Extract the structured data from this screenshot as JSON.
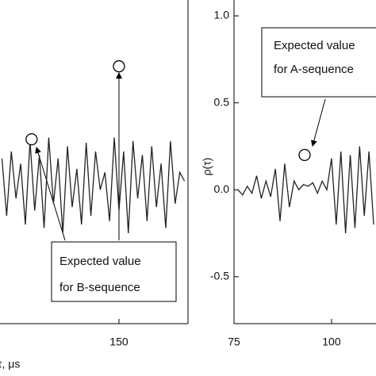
{
  "chart_data": [
    {
      "type": "line",
      "xlabel": "τ, μs",
      "x": [
        120,
        121.2,
        122.4,
        123.6,
        124.8,
        126,
        127.2,
        128.4,
        129.6,
        130.8,
        132,
        133.2,
        134.4,
        135.6,
        136.8,
        138,
        139.2,
        140.4,
        141.6,
        142.8,
        144,
        145.2,
        146.4,
        147.6,
        148.8,
        150,
        151.2,
        152.4,
        153.6,
        154.8,
        156,
        157.2,
        158.4,
        159.6,
        160.8,
        162,
        163.2,
        164.4,
        165.6,
        166.8
      ],
      "values": [
        0.18,
        -0.15,
        0.22,
        -0.05,
        0.15,
        -0.2,
        0.28,
        -0.12,
        0.2,
        -0.22,
        0.3,
        -0.08,
        0.18,
        -0.25,
        0.25,
        -0.1,
        0.12,
        -0.2,
        0.27,
        -0.15,
        0.22,
        0.0,
        0.1,
        -0.18,
        0.3,
        -0.12,
        0.22,
        -0.25,
        0.28,
        -0.05,
        0.2,
        -0.18,
        0.25,
        -0.1,
        0.15,
        -0.22,
        0.28,
        -0.08,
        0.1,
        0.05
      ],
      "color": "#222",
      "markers": {
        "x": [
          127.6,
          150
        ],
        "y": [
          0.29,
          0.71
        ]
      },
      "annotation": [
        "Expected value",
        "for B-sequence"
      ],
      "xlim": [
        119.5,
        167.7
      ],
      "ylim": [
        -0.77,
        1.0
      ],
      "xticks": [
        150
      ]
    },
    {
      "type": "line",
      "ylabel": "ρ(τ)",
      "x": [
        76,
        77.2,
        78.4,
        79.6,
        80.8,
        82,
        83.2,
        84.4,
        85.6,
        86.8,
        88,
        89.2,
        90.4,
        91.6,
        92.8,
        94,
        95.2,
        96.4,
        97.6,
        98.8,
        100,
        101.2,
        102.4,
        103.6,
        104.8,
        106,
        107.2,
        108.4,
        109.6,
        110.8
      ],
      "values": [
        0.0,
        -0.03,
        0.02,
        -0.02,
        0.08,
        -0.05,
        0.05,
        -0.04,
        0.12,
        -0.18,
        0.15,
        -0.1,
        0.05,
        0.0,
        0.03,
        0.02,
        0.04,
        -0.02,
        0.05,
        0.0,
        0.18,
        -0.2,
        0.22,
        -0.25,
        0.2,
        -0.22,
        0.25,
        -0.15,
        0.22,
        -0.2
      ],
      "color": "#222",
      "markers": {
        "x": [
          93.1
        ],
        "y": [
          0.2
        ]
      },
      "annotation": [
        "Expected value",
        "for A-sequence"
      ],
      "xlim": [
        75,
        111.4
      ],
      "ylim": [
        -0.77,
        1.0
      ],
      "xticks": [
        75,
        100
      ],
      "yticks": [
        -0.5,
        {
          "value": 0,
          "label": "0.0"
        },
        0.5,
        {
          "value": 1,
          "label": "1.0"
        }
      ]
    }
  ]
}
